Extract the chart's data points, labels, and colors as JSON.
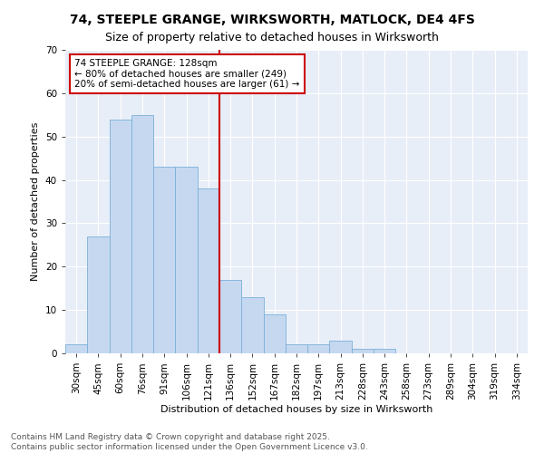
{
  "title": "74, STEEPLE GRANGE, WIRKSWORTH, MATLOCK, DE4 4FS",
  "subtitle": "Size of property relative to detached houses in Wirksworth",
  "xlabel": "Distribution of detached houses by size in Wirksworth",
  "ylabel": "Number of detached properties",
  "categories": [
    "30sqm",
    "45sqm",
    "60sqm",
    "76sqm",
    "91sqm",
    "106sqm",
    "121sqm",
    "136sqm",
    "152sqm",
    "167sqm",
    "182sqm",
    "197sqm",
    "213sqm",
    "228sqm",
    "243sqm",
    "258sqm",
    "273sqm",
    "289sqm",
    "304sqm",
    "319sqm",
    "334sqm"
  ],
  "values": [
    2,
    27,
    54,
    55,
    43,
    43,
    38,
    17,
    13,
    9,
    2,
    2,
    3,
    1,
    1,
    0,
    0,
    0,
    0,
    0,
    0
  ],
  "bar_color": "#c5d8f0",
  "bar_edge_color": "#7ab0d8",
  "vline_bar_index": 7,
  "vline_label": "74 STEEPLE GRANGE: 128sqm",
  "annotation_smaller": "← 80% of detached houses are smaller (249)",
  "annotation_larger": "20% of semi-detached houses are larger (61) →",
  "annotation_box_color": "#ffffff",
  "annotation_box_edge": "#cc0000",
  "vline_color": "#cc0000",
  "ylim": [
    0,
    70
  ],
  "yticks": [
    0,
    10,
    20,
    30,
    40,
    50,
    60,
    70
  ],
  "background_color": "#e8eef8",
  "footer": "Contains HM Land Registry data © Crown copyright and database right 2025.\nContains public sector information licensed under the Open Government Licence v3.0.",
  "title_fontsize": 10,
  "subtitle_fontsize": 9,
  "axis_label_fontsize": 8,
  "tick_fontsize": 7.5,
  "annotation_fontsize": 7.5,
  "footer_fontsize": 6.5
}
